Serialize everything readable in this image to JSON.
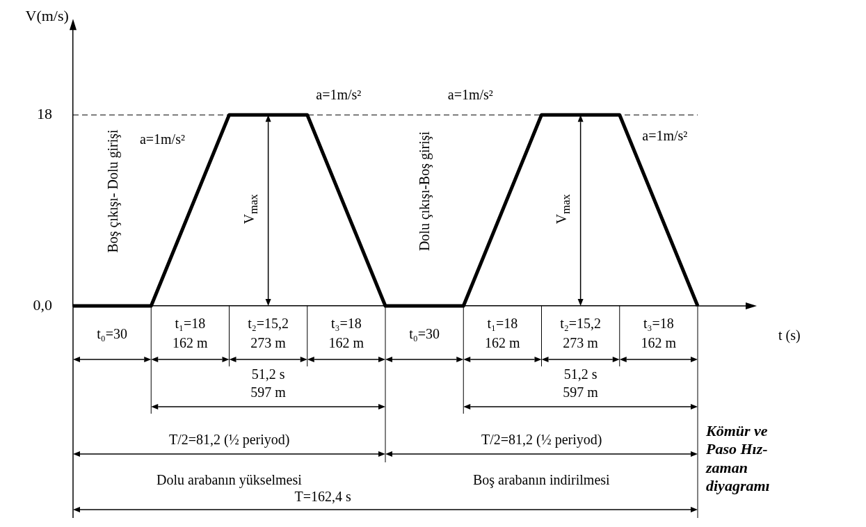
{
  "chart_data": {
    "type": "line",
    "title": "Kömür ve Paso Hız-zaman diyagramı",
    "ylabel": "V(m/s)",
    "categories": [
      null,
      null,
      null,
      null,
      null,
      null,
      null,
      null,
      null
    ],
    "series": [
      {
        "color": "#000000",
        "values": [
          0,
          0,
          18,
          18,
          0,
          0,
          18,
          18,
          0
        ]
      }
    ],
    "ylim": [
      0,
      26
    ],
    "yticks": [
      {
        "value": 0,
        "label": "0,0"
      },
      18
    ],
    "tick_labels": "y",
    "marker": "none",
    "line_style": "solid",
    "ref_lines": [
      {
        "axis": "y",
        "value": 18,
        "color": "#000000",
        "line_style": "dashed"
      }
    ],
    "annotations": [
      "Boş çıkışı- Dolu girişi",
      "a=1m/s²",
      "a=1m/s²",
      "a=1m/s²",
      "a=1m/s²",
      "V$_{max}$",
      "V$_{max}$",
      "t₀=30",
      "t₁=18",
      "162 m",
      "t₂=15,2",
      "273 m",
      "t₃=18",
      "162 m",
      "t₀=30",
      "t₁=18",
      "162 m",
      "t₂=15,2",
      "273 m",
      "t₃=18",
      "162 m",
      "51,2 s",
      "597 m",
      "51,2 s",
      "597 m",
      "T/2=81,2 (½ periyod)",
      "T/2=81,2 (½ periyod)",
      "Dolu arabanın yükselmesi",
      "Boş arabanın indirilmesi",
      "T=162,4 s",
      "Dolu çıkışı-Boş girişi",
      "t (s)"
    ]
  }
}
